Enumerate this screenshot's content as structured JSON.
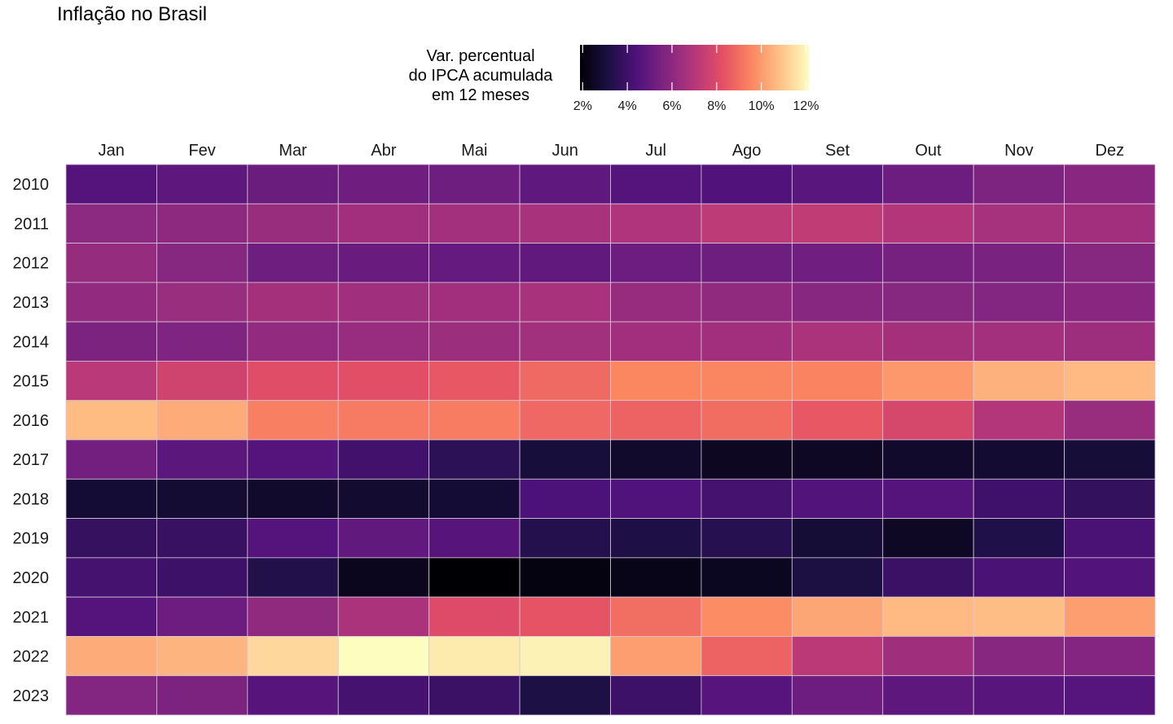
{
  "title": "Inflação no Brasil",
  "legend": {
    "title_lines": [
      "Var. percentual",
      "do IPCA acumulada",
      "em 12 meses"
    ],
    "ticks": [
      2,
      4,
      6,
      8,
      10,
      12
    ],
    "tick_labels": [
      "2%",
      "4%",
      "6%",
      "8%",
      "10%",
      "12%"
    ],
    "range": [
      1.88,
      12.13
    ]
  },
  "colors": {
    "magma_stops": [
      "#000004",
      "#1c1044",
      "#4f127b",
      "#812581",
      "#b5367a",
      "#e55064",
      "#fb8761",
      "#fec287",
      "#fcfdbf"
    ],
    "cell_border": "#d9c6dd",
    "background": "#ffffff"
  },
  "chart_data": {
    "type": "heatmap",
    "title": "Inflação no Brasil",
    "x_categories": [
      "Jan",
      "Fev",
      "Mar",
      "Abr",
      "Mai",
      "Jun",
      "Jul",
      "Ago",
      "Set",
      "Out",
      "Nov",
      "Dez"
    ],
    "y_categories": [
      "2010",
      "2011",
      "2012",
      "2013",
      "2014",
      "2015",
      "2016",
      "2017",
      "2018",
      "2019",
      "2020",
      "2021",
      "2022",
      "2023"
    ],
    "value_label": "Var. percentual do IPCA acumulada em 12 meses",
    "values": [
      [
        4.59,
        4.83,
        5.17,
        5.26,
        5.22,
        4.84,
        4.6,
        4.49,
        4.7,
        5.2,
        5.63,
        5.91
      ],
      [
        5.99,
        6.01,
        6.3,
        6.51,
        6.55,
        6.71,
        6.87,
        7.23,
        7.31,
        6.97,
        6.64,
        6.5
      ],
      [
        6.22,
        5.85,
        5.24,
        5.1,
        4.99,
        4.92,
        5.2,
        5.24,
        5.28,
        5.45,
        5.53,
        5.84
      ],
      [
        6.15,
        6.31,
        6.59,
        6.49,
        6.5,
        6.7,
        6.27,
        6.09,
        5.86,
        5.84,
        5.77,
        5.91
      ],
      [
        5.59,
        5.68,
        6.15,
        6.28,
        6.37,
        6.52,
        6.5,
        6.51,
        6.75,
        6.59,
        6.56,
        6.41
      ],
      [
        7.14,
        7.7,
        8.13,
        8.17,
        8.47,
        8.89,
        9.56,
        9.53,
        9.49,
        9.93,
        10.48,
        10.67
      ],
      [
        10.71,
        10.36,
        9.39,
        9.28,
        9.32,
        8.84,
        8.74,
        8.97,
        8.48,
        7.87,
        6.99,
        6.29
      ],
      [
        5.35,
        4.76,
        4.57,
        4.08,
        3.6,
        3.0,
        2.71,
        2.46,
        2.54,
        2.7,
        2.8,
        2.95
      ],
      [
        2.86,
        2.84,
        2.68,
        2.76,
        2.86,
        4.39,
        4.48,
        4.19,
        4.53,
        4.56,
        4.05,
        3.75
      ],
      [
        3.78,
        3.89,
        4.58,
        4.94,
        4.66,
        3.37,
        3.22,
        3.43,
        2.89,
        2.54,
        3.27,
        4.31
      ],
      [
        4.19,
        4.01,
        3.3,
        2.4,
        1.88,
        2.13,
        2.31,
        2.44,
        3.14,
        3.92,
        4.31,
        4.52
      ],
      [
        4.56,
        5.2,
        6.1,
        6.76,
        8.06,
        8.35,
        8.99,
        9.68,
        10.25,
        10.67,
        10.74,
        10.06
      ],
      [
        10.38,
        10.54,
        11.3,
        12.13,
        11.73,
        11.89,
        10.07,
        8.73,
        7.17,
        6.47,
        5.9,
        5.79
      ],
      [
        5.77,
        5.6,
        4.65,
        4.18,
        3.94,
        3.16,
        3.99,
        4.61,
        5.19,
        4.82,
        4.68,
        4.62
      ]
    ]
  }
}
